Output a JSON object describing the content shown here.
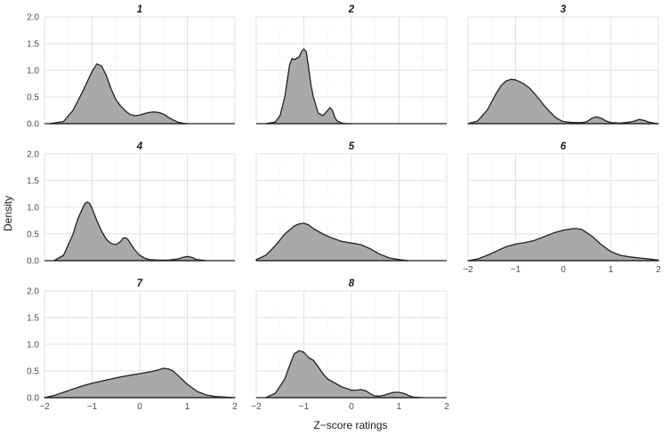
{
  "chart_data": {
    "type": "area",
    "kind": "faceted density plot",
    "xlabel": "Z−score ratings",
    "ylabel": "Density",
    "xlim": [
      -2,
      2
    ],
    "ylim": [
      0,
      2
    ],
    "x_ticks": [
      "−2",
      "−1",
      "0",
      "1",
      "2"
    ],
    "y_ticks": [
      "0.0",
      "0.5",
      "1.0",
      "1.5",
      "2.0"
    ],
    "grid": true,
    "fill_color": "#a9a9a9",
    "line_color": "#222222",
    "panels": [
      {
        "title": "1",
        "x": [
          -1.9,
          -1.6,
          -1.4,
          -1.2,
          -1.0,
          -0.9,
          -0.8,
          -0.7,
          -0.6,
          -0.5,
          -0.4,
          -0.3,
          -0.2,
          -0.1,
          0.0,
          0.1,
          0.2,
          0.3,
          0.4,
          0.5,
          0.6,
          0.7,
          0.8,
          0.9,
          1.0
        ],
        "y": [
          0,
          0.04,
          0.25,
          0.6,
          0.98,
          1.12,
          1.08,
          0.9,
          0.65,
          0.45,
          0.33,
          0.24,
          0.17,
          0.15,
          0.16,
          0.19,
          0.21,
          0.22,
          0.21,
          0.18,
          0.12,
          0.07,
          0.03,
          0.01,
          0
        ]
      },
      {
        "title": "2",
        "x": [
          -1.8,
          -1.6,
          -1.5,
          -1.4,
          -1.3,
          -1.25,
          -1.2,
          -1.1,
          -1.05,
          -1.0,
          -0.95,
          -0.9,
          -0.85,
          -0.8,
          -0.75,
          -0.7,
          -0.6,
          -0.5,
          -0.45,
          -0.4,
          -0.35,
          -0.3,
          -0.2,
          -0.1,
          0.0
        ],
        "y": [
          0,
          0.03,
          0.15,
          0.5,
          1.1,
          1.22,
          1.2,
          1.25,
          1.35,
          1.4,
          1.35,
          1.05,
          0.72,
          0.5,
          0.35,
          0.2,
          0.15,
          0.25,
          0.3,
          0.25,
          0.12,
          0.05,
          0.01,
          0,
          0
        ]
      },
      {
        "title": "3",
        "x": [
          -2.0,
          -1.8,
          -1.6,
          -1.4,
          -1.3,
          -1.2,
          -1.1,
          -1.0,
          -0.9,
          -0.8,
          -0.7,
          -0.6,
          -0.5,
          -0.4,
          -0.3,
          -0.2,
          -0.1,
          0.0,
          0.2,
          0.4,
          0.5,
          0.6,
          0.7,
          0.8,
          0.9,
          1.0,
          1.2,
          1.4,
          1.5,
          1.6,
          1.7,
          1.8,
          1.9,
          2.0
        ],
        "y": [
          0,
          0.05,
          0.25,
          0.58,
          0.72,
          0.8,
          0.83,
          0.82,
          0.78,
          0.73,
          0.66,
          0.56,
          0.45,
          0.34,
          0.24,
          0.15,
          0.08,
          0.04,
          0.02,
          0.02,
          0.04,
          0.1,
          0.13,
          0.1,
          0.05,
          0.02,
          0.01,
          0.03,
          0.05,
          0.08,
          0.06,
          0.03,
          0.01,
          0
        ]
      },
      {
        "title": "4",
        "x": [
          -1.8,
          -1.6,
          -1.4,
          -1.3,
          -1.2,
          -1.15,
          -1.1,
          -1.05,
          -1.0,
          -0.9,
          -0.8,
          -0.7,
          -0.6,
          -0.5,
          -0.4,
          -0.35,
          -0.3,
          -0.25,
          -0.2,
          -0.1,
          0.0,
          0.1,
          0.2,
          0.4,
          0.6,
          0.8,
          0.9,
          1.0,
          1.1,
          1.2,
          1.4
        ],
        "y": [
          0,
          0.1,
          0.5,
          0.78,
          0.98,
          1.07,
          1.1,
          1.07,
          0.98,
          0.75,
          0.55,
          0.4,
          0.32,
          0.3,
          0.36,
          0.42,
          0.43,
          0.4,
          0.33,
          0.2,
          0.1,
          0.05,
          0.02,
          0.01,
          0.01,
          0.03,
          0.06,
          0.08,
          0.06,
          0.02,
          0
        ]
      },
      {
        "title": "5",
        "x": [
          -2.0,
          -1.8,
          -1.6,
          -1.4,
          -1.2,
          -1.1,
          -1.0,
          -0.9,
          -0.8,
          -0.6,
          -0.4,
          -0.2,
          0.0,
          0.2,
          0.4,
          0.6,
          0.8,
          1.0,
          1.2
        ],
        "y": [
          0.02,
          0.1,
          0.28,
          0.5,
          0.65,
          0.69,
          0.7,
          0.67,
          0.6,
          0.5,
          0.42,
          0.36,
          0.33,
          0.3,
          0.22,
          0.12,
          0.05,
          0.02,
          0
        ]
      },
      {
        "title": "6",
        "x": [
          -2.0,
          -1.8,
          -1.6,
          -1.4,
          -1.2,
          -1.0,
          -0.8,
          -0.6,
          -0.4,
          -0.2,
          0.0,
          0.2,
          0.3,
          0.4,
          0.6,
          0.8,
          1.0,
          1.2,
          1.4,
          1.6,
          1.8,
          2.0
        ],
        "y": [
          0,
          0.03,
          0.1,
          0.18,
          0.26,
          0.31,
          0.34,
          0.38,
          0.45,
          0.52,
          0.57,
          0.6,
          0.6,
          0.58,
          0.46,
          0.3,
          0.17,
          0.1,
          0.07,
          0.05,
          0.03,
          0.01
        ]
      },
      {
        "title": "7",
        "x": [
          -2.0,
          -1.8,
          -1.6,
          -1.4,
          -1.2,
          -1.0,
          -0.8,
          -0.6,
          -0.4,
          -0.2,
          0.0,
          0.2,
          0.4,
          0.5,
          0.6,
          0.7,
          0.8,
          1.0,
          1.2,
          1.4,
          1.6,
          1.8,
          2.0
        ],
        "y": [
          0,
          0.04,
          0.1,
          0.16,
          0.22,
          0.27,
          0.31,
          0.35,
          0.39,
          0.42,
          0.45,
          0.48,
          0.52,
          0.55,
          0.54,
          0.5,
          0.42,
          0.25,
          0.12,
          0.05,
          0.02,
          0.01,
          0
        ]
      },
      {
        "title": "8",
        "x": [
          -1.8,
          -1.6,
          -1.4,
          -1.3,
          -1.2,
          -1.1,
          -1.0,
          -0.9,
          -0.8,
          -0.7,
          -0.6,
          -0.5,
          -0.4,
          -0.3,
          -0.2,
          -0.1,
          0.0,
          0.1,
          0.2,
          0.3,
          0.4,
          0.5,
          0.6,
          0.7,
          0.8,
          0.9,
          1.0,
          1.1,
          1.2,
          1.3,
          1.5
        ],
        "y": [
          0,
          0.08,
          0.35,
          0.6,
          0.82,
          0.88,
          0.85,
          0.75,
          0.7,
          0.58,
          0.45,
          0.35,
          0.3,
          0.25,
          0.2,
          0.17,
          0.14,
          0.14,
          0.15,
          0.13,
          0.07,
          0.03,
          0.03,
          0.05,
          0.08,
          0.1,
          0.1,
          0.08,
          0.04,
          0.01,
          0
        ]
      }
    ]
  }
}
